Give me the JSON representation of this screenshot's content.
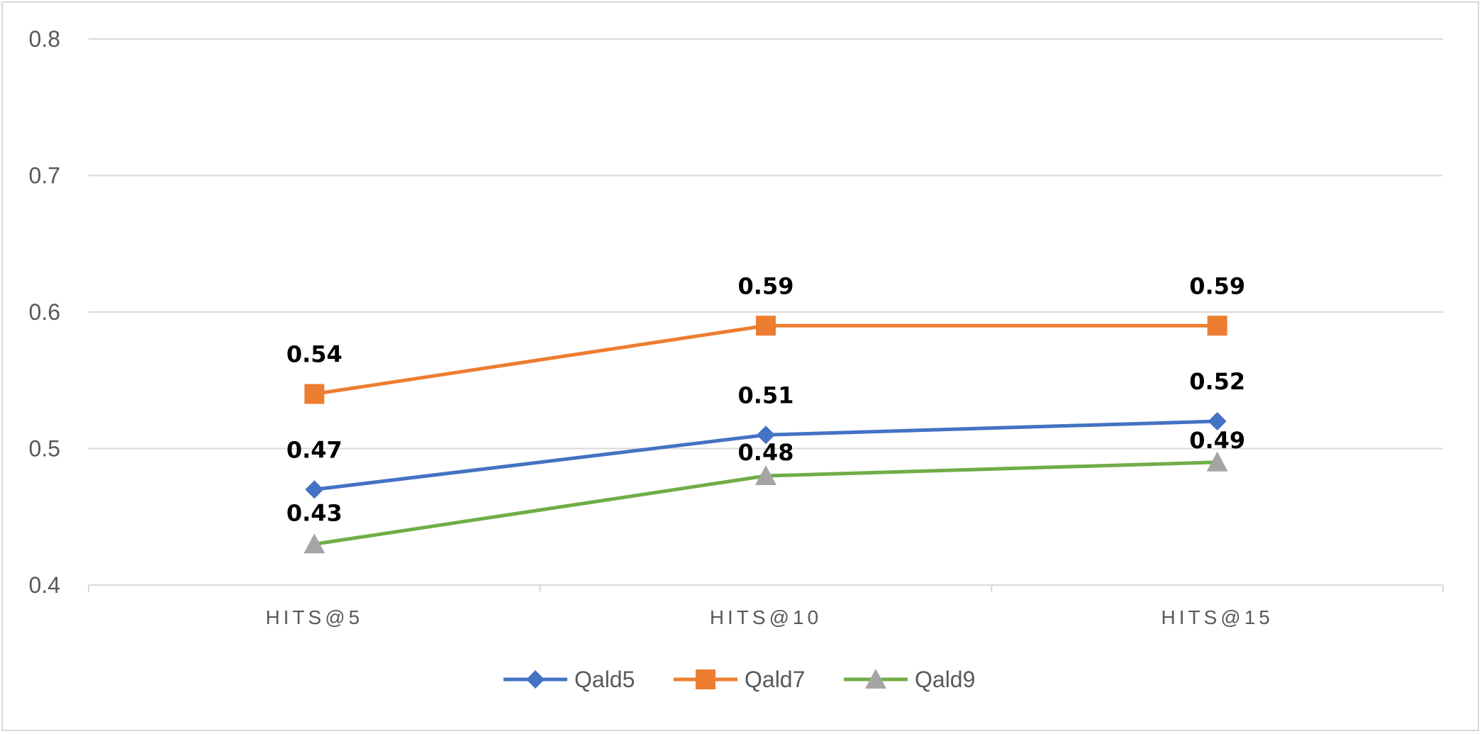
{
  "chart_data": {
    "type": "line",
    "title": "",
    "xlabel": "",
    "ylabel": "",
    "categories": [
      "HITS@5",
      "HITS@10",
      "HITS@15"
    ],
    "ylim": [
      0.4,
      0.8
    ],
    "yticks": [
      "0.4",
      "0.5",
      "0.6",
      "0.7",
      "0.8"
    ],
    "grid": true,
    "legend_position": "bottom",
    "series": [
      {
        "name": "Qald5",
        "values": [
          0.47,
          0.51,
          0.52
        ],
        "labels": [
          "0.47",
          "0.51",
          "0.52"
        ],
        "color": "#4472c4",
        "marker": "diamond",
        "marker_color": "#4472c4"
      },
      {
        "name": "Qald7",
        "values": [
          0.54,
          0.59,
          0.59
        ],
        "labels": [
          "0.54",
          "0.59",
          "0.59"
        ],
        "color": "#ed7d31",
        "marker": "square",
        "marker_color": "#ed7d31"
      },
      {
        "name": "Qald9",
        "values": [
          0.43,
          0.48,
          0.49
        ],
        "labels": [
          "0.43",
          "0.48",
          "0.49"
        ],
        "color": "#70ad47",
        "marker": "triangle",
        "marker_color": "#a5a5a5"
      }
    ]
  }
}
